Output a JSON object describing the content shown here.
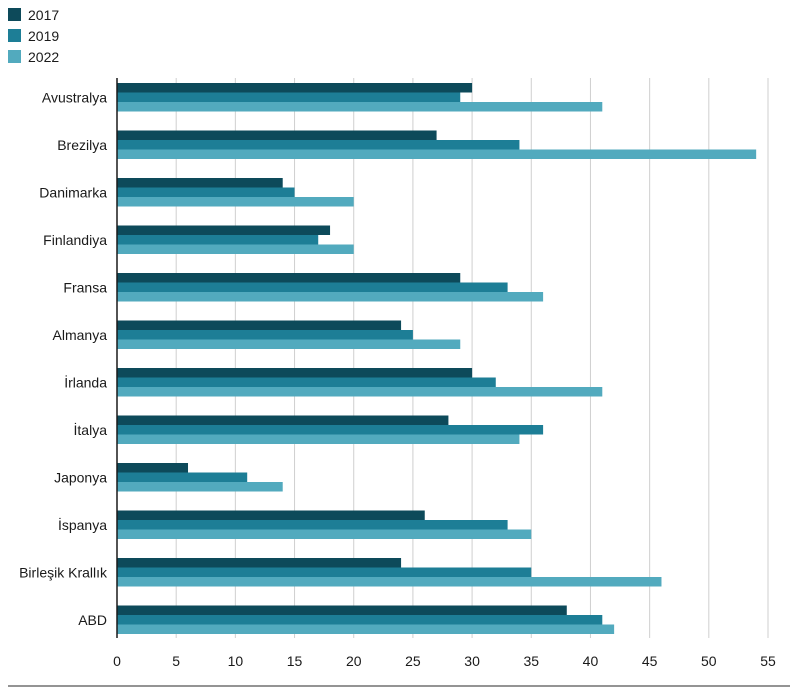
{
  "chart_data": {
    "type": "bar",
    "orientation": "horizontal",
    "categories": [
      "Avustralya",
      "Brezilya",
      "Danimarka",
      "Finlandiya",
      "Fransa",
      "Almanya",
      "İrlanda",
      "İtalya",
      "Japonya",
      "İspanya",
      "Birleşik Krallık",
      "ABD"
    ],
    "series": [
      {
        "name": "2017",
        "color": "#0d4a5a",
        "values": [
          30,
          27,
          14,
          18,
          29,
          24,
          30,
          28,
          6,
          26,
          24,
          38
        ]
      },
      {
        "name": "2019",
        "color": "#1d7e96",
        "values": [
          29,
          34,
          15,
          17,
          33,
          25,
          32,
          36,
          11,
          33,
          35,
          41
        ]
      },
      {
        "name": "2022",
        "color": "#52aabe",
        "values": [
          41,
          54,
          20,
          20,
          36,
          29,
          41,
          34,
          14,
          35,
          46,
          42
        ]
      }
    ],
    "xlim": [
      0,
      55
    ],
    "xticks": [
      "0",
      "5",
      "10",
      "15",
      "20",
      "25",
      "30",
      "35",
      "40",
      "45",
      "50",
      "55"
    ],
    "grid": true,
    "legend_position": "top-left",
    "title": "",
    "xlabel": "",
    "ylabel": ""
  }
}
